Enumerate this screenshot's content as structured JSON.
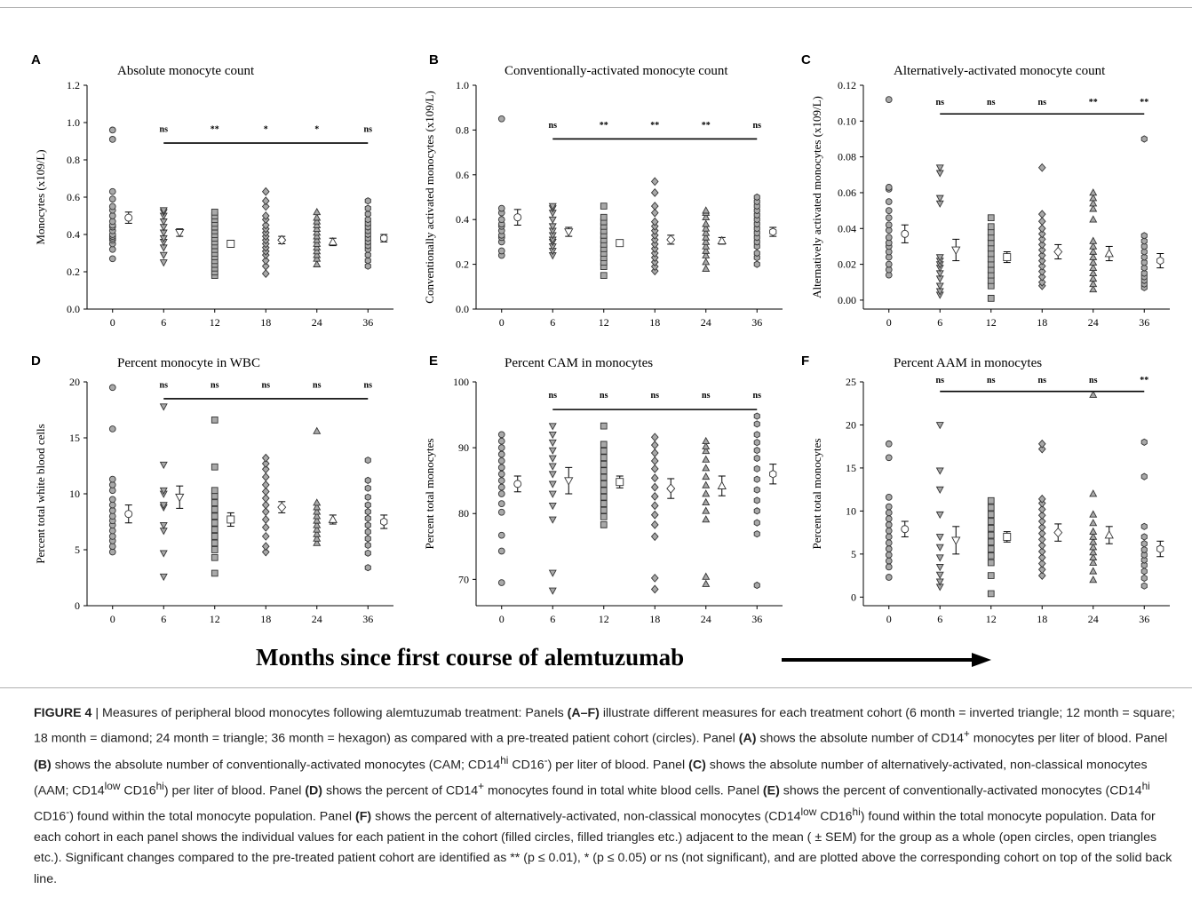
{
  "figure": {
    "x_axis_main_label": "Months since first course of alemtuzumab",
    "x_ticks": [
      "0",
      "6",
      "12",
      "18",
      "24",
      "36"
    ],
    "marker_fill": "#a9a9a9",
    "marker_stroke": "#333333"
  },
  "chart_data": [
    {
      "panel": "A",
      "type": "scatter",
      "title": "Absolute monocyte count",
      "ylabel": "Monocytes (x109/L)",
      "ylim": [
        0,
        1.2
      ],
      "yticks": [
        "0.0",
        "0.2",
        "0.4",
        "0.6",
        "0.8",
        "1.0",
        "1.2"
      ],
      "categories": [
        "0",
        "6",
        "12",
        "18",
        "24",
        "36"
      ],
      "markers": [
        "circle",
        "triangle-down",
        "square",
        "diamond",
        "triangle-up",
        "hexagon"
      ],
      "sig_labels": [
        "ns",
        "**",
        "*",
        "*",
        "ns"
      ],
      "sig_line_y": 0.89,
      "sig_text_y": 0.95,
      "means": [
        0.49,
        0.41,
        0.35,
        0.37,
        0.36,
        0.38
      ],
      "sems": [
        0.03,
        0.02,
        0.015,
        0.02,
        0.02,
        0.02
      ],
      "points": [
        [
          0.27,
          0.32,
          0.35,
          0.37,
          0.38,
          0.39,
          0.4,
          0.42,
          0.44,
          0.45,
          0.47,
          0.5,
          0.53,
          0.55,
          0.59,
          0.63,
          0.91,
          0.96
        ],
        [
          0.25,
          0.29,
          0.33,
          0.36,
          0.38,
          0.41,
          0.44,
          0.47,
          0.5,
          0.52,
          0.53
        ],
        [
          0.18,
          0.2,
          0.22,
          0.24,
          0.26,
          0.28,
          0.3,
          0.32,
          0.34,
          0.36,
          0.38,
          0.4,
          0.42,
          0.44,
          0.46,
          0.48,
          0.5,
          0.52
        ],
        [
          0.19,
          0.23,
          0.26,
          0.29,
          0.31,
          0.33,
          0.35,
          0.37,
          0.39,
          0.41,
          0.43,
          0.45,
          0.48,
          0.5,
          0.55,
          0.58,
          0.63
        ],
        [
          0.24,
          0.27,
          0.29,
          0.31,
          0.33,
          0.35,
          0.37,
          0.39,
          0.41,
          0.43,
          0.45,
          0.47,
          0.49,
          0.52
        ],
        [
          0.23,
          0.26,
          0.29,
          0.32,
          0.34,
          0.36,
          0.38,
          0.4,
          0.42,
          0.44,
          0.46,
          0.48,
          0.51,
          0.54,
          0.58
        ]
      ]
    },
    {
      "panel": "B",
      "type": "scatter",
      "title": "Conventionally-activated monocyte count",
      "ylabel": "Conventionally activated monocytes (x109/L)",
      "ylim": [
        0,
        1.0
      ],
      "yticks": [
        "0.0",
        "0.2",
        "0.4",
        "0.6",
        "0.8",
        "1.0"
      ],
      "categories": [
        "0",
        "6",
        "12",
        "18",
        "24",
        "36"
      ],
      "markers": [
        "circle",
        "triangle-down",
        "square",
        "diamond",
        "triangle-up",
        "hexagon"
      ],
      "sig_labels": [
        "ns",
        "**",
        "**",
        "**",
        "ns"
      ],
      "sig_line_y": 0.76,
      "sig_text_y": 0.81,
      "means": [
        0.41,
        0.345,
        0.295,
        0.31,
        0.305,
        0.345
      ],
      "sems": [
        0.035,
        0.02,
        0.015,
        0.02,
        0.015,
        0.02
      ],
      "points": [
        [
          0.24,
          0.26,
          0.3,
          0.32,
          0.33,
          0.35,
          0.37,
          0.38,
          0.4,
          0.43,
          0.45,
          0.85
        ],
        [
          0.24,
          0.26,
          0.28,
          0.3,
          0.31,
          0.33,
          0.35,
          0.37,
          0.4,
          0.43,
          0.45,
          0.46
        ],
        [
          0.15,
          0.19,
          0.21,
          0.23,
          0.25,
          0.27,
          0.29,
          0.31,
          0.33,
          0.35,
          0.37,
          0.39,
          0.41,
          0.46
        ],
        [
          0.17,
          0.19,
          0.21,
          0.23,
          0.25,
          0.27,
          0.29,
          0.31,
          0.33,
          0.35,
          0.37,
          0.39,
          0.43,
          0.46,
          0.52,
          0.57
        ],
        [
          0.18,
          0.21,
          0.24,
          0.26,
          0.28,
          0.3,
          0.32,
          0.34,
          0.36,
          0.38,
          0.41,
          0.43,
          0.44
        ],
        [
          0.2,
          0.23,
          0.25,
          0.28,
          0.3,
          0.32,
          0.34,
          0.36,
          0.38,
          0.4,
          0.42,
          0.44,
          0.46,
          0.48,
          0.5
        ]
      ]
    },
    {
      "panel": "C",
      "type": "scatter",
      "title": "Alternatively-activated monocyte count",
      "ylabel": "Alternatively activated monocytes (x109/L)",
      "ylim": [
        -0.005,
        0.12
      ],
      "yticks": [
        "0.00",
        "0.02",
        "0.04",
        "0.06",
        "0.08",
        "0.10",
        "0.12"
      ],
      "categories": [
        "0",
        "6",
        "12",
        "18",
        "24",
        "36"
      ],
      "markers": [
        "circle",
        "triangle-down",
        "square",
        "diamond",
        "triangle-up",
        "hexagon"
      ],
      "sig_labels": [
        "ns",
        "ns",
        "ns",
        "**",
        "**"
      ],
      "sig_line_y": 0.104,
      "sig_text_y": 0.109,
      "means": [
        0.037,
        0.028,
        0.024,
        0.027,
        0.026,
        0.022
      ],
      "sems": [
        0.005,
        0.006,
        0.003,
        0.004,
        0.004,
        0.004
      ],
      "points": [
        [
          0.014,
          0.017,
          0.02,
          0.024,
          0.027,
          0.03,
          0.032,
          0.035,
          0.039,
          0.042,
          0.046,
          0.05,
          0.055,
          0.062,
          0.063,
          0.112
        ],
        [
          0.003,
          0.005,
          0.008,
          0.012,
          0.015,
          0.018,
          0.02,
          0.022,
          0.024,
          0.054,
          0.057,
          0.071,
          0.074
        ],
        [
          0.001,
          0.008,
          0.011,
          0.014,
          0.017,
          0.02,
          0.023,
          0.026,
          0.029,
          0.032,
          0.035,
          0.038,
          0.041,
          0.046
        ],
        [
          0.008,
          0.01,
          0.013,
          0.016,
          0.019,
          0.022,
          0.025,
          0.028,
          0.031,
          0.034,
          0.037,
          0.04,
          0.044,
          0.048,
          0.074
        ],
        [
          0.006,
          0.009,
          0.012,
          0.015,
          0.018,
          0.021,
          0.024,
          0.027,
          0.03,
          0.033,
          0.045,
          0.051,
          0.054,
          0.057,
          0.06
        ],
        [
          0.007,
          0.009,
          0.011,
          0.013,
          0.015,
          0.018,
          0.021,
          0.024,
          0.027,
          0.03,
          0.033,
          0.036,
          0.09
        ]
      ]
    },
    {
      "panel": "D",
      "type": "scatter",
      "title": "Percent monocyte in WBC",
      "ylabel": "Percent total white blood cells",
      "ylim": [
        0,
        20
      ],
      "yticks": [
        "0",
        "5",
        "10",
        "15",
        "20"
      ],
      "categories": [
        "0",
        "6",
        "12",
        "18",
        "24",
        "36"
      ],
      "markers": [
        "circle",
        "triangle-down",
        "square",
        "diamond",
        "triangle-up",
        "hexagon"
      ],
      "sig_labels": [
        "ns",
        "ns",
        "ns",
        "ns",
        "ns"
      ],
      "sig_line_y": 18.5,
      "sig_text_y": 19.5,
      "means": [
        8.2,
        9.7,
        7.7,
        8.8,
        7.7,
        7.5
      ],
      "sems": [
        0.8,
        1.0,
        0.6,
        0.5,
        0.4,
        0.6
      ],
      "points": [
        [
          4.8,
          5.3,
          5.8,
          6.2,
          6.7,
          7.2,
          7.6,
          8.0,
          8.5,
          9.0,
          9.5,
          10.3,
          10.8,
          11.3,
          15.8,
          19.5
        ],
        [
          2.6,
          4.7,
          6.7,
          7.2,
          8.8,
          9.0,
          10.0,
          10.3,
          12.6,
          17.8
        ],
        [
          2.9,
          4.3,
          5.0,
          5.6,
          6.2,
          6.8,
          7.4,
          8.0,
          8.6,
          9.2,
          9.8,
          10.3,
          12.4,
          16.6
        ],
        [
          4.8,
          5.3,
          6.2,
          7.0,
          7.7,
          8.4,
          9.0,
          9.6,
          10.2,
          10.8,
          11.5,
          12.2,
          12.7,
          13.2
        ],
        [
          5.6,
          6.0,
          6.4,
          6.8,
          7.2,
          7.6,
          8.0,
          8.4,
          8.8,
          9.2,
          15.6
        ],
        [
          3.4,
          4.7,
          5.4,
          6.0,
          6.6,
          7.2,
          7.8,
          8.4,
          9.0,
          9.7,
          10.5,
          11.2,
          13.0
        ]
      ]
    },
    {
      "panel": "E",
      "type": "scatter",
      "title": "Percent CAM in monocytes",
      "ylabel": "Percent total monocytes",
      "ylim": [
        66,
        100
      ],
      "yticks": [
        "70",
        "80",
        "90",
        "100"
      ],
      "categories": [
        "0",
        "6",
        "12",
        "18",
        "24",
        "36"
      ],
      "markers": [
        "circle",
        "triangle-down",
        "square",
        "diamond",
        "triangle-up",
        "hexagon"
      ],
      "sig_labels": [
        "ns",
        "ns",
        "ns",
        "ns",
        "ns"
      ],
      "sig_line_y": 95.8,
      "sig_text_y": 97.6,
      "means": [
        84.5,
        85.0,
        84.8,
        83.8,
        84.2,
        86.0
      ],
      "sems": [
        1.2,
        2.0,
        0.9,
        1.5,
        1.5,
        1.5
      ],
      "points": [
        [
          69.5,
          74.3,
          76.7,
          80.2,
          81.5,
          83.0,
          84.0,
          85.0,
          86.0,
          87.0,
          88.0,
          89.0,
          90.0,
          91.0,
          92.0
        ],
        [
          68.3,
          71.0,
          79.1,
          81.2,
          83.0,
          84.5,
          86.0,
          87.2,
          88.4,
          89.6,
          90.8,
          92.0,
          93.3
        ],
        [
          78.3,
          79.5,
          80.5,
          81.5,
          82.5,
          83.5,
          84.5,
          85.5,
          86.5,
          87.5,
          88.5,
          89.5,
          90.5,
          93.3
        ],
        [
          68.5,
          70.2,
          76.5,
          78.3,
          79.8,
          81.2,
          82.6,
          84.0,
          85.4,
          86.8,
          88.0,
          89.2,
          90.4,
          91.6
        ],
        [
          69.3,
          70.4,
          79.1,
          80.4,
          81.7,
          83.0,
          84.3,
          85.6,
          86.9,
          88.2,
          89.5,
          90.2,
          91.0
        ],
        [
          69.1,
          76.9,
          78.6,
          80.4,
          82.0,
          83.6,
          85.2,
          86.8,
          88.4,
          89.6,
          90.8,
          92.0,
          93.6,
          94.8
        ]
      ]
    },
    {
      "panel": "F",
      "type": "scatter",
      "title": "Percent AAM in monocytes",
      "ylabel": "Percent total monocytes",
      "ylim": [
        -1,
        25
      ],
      "yticks": [
        "0",
        "5",
        "10",
        "15",
        "20",
        "25"
      ],
      "categories": [
        "0",
        "6",
        "12",
        "18",
        "24",
        "36"
      ],
      "markers": [
        "circle",
        "triangle-down",
        "square",
        "diamond",
        "triangle-up",
        "hexagon"
      ],
      "sig_labels": [
        "ns",
        "ns",
        "ns",
        "ns",
        "**"
      ],
      "sig_line_y": 23.9,
      "sig_text_y": 24.9,
      "means": [
        7.9,
        6.6,
        7.0,
        7.5,
        7.2,
        5.6
      ],
      "sems": [
        0.9,
        1.6,
        0.6,
        1.0,
        1.0,
        0.9
      ],
      "points": [
        [
          2.3,
          3.5,
          4.2,
          4.9,
          5.6,
          6.3,
          7.0,
          7.7,
          8.4,
          9.1,
          9.8,
          10.5,
          11.6,
          16.2,
          17.8
        ],
        [
          1.2,
          1.8,
          2.6,
          3.5,
          4.6,
          5.8,
          7.0,
          9.6,
          12.5,
          14.7,
          20.0
        ],
        [
          0.4,
          2.5,
          4.0,
          4.8,
          5.6,
          6.4,
          7.2,
          8.0,
          8.8,
          9.6,
          10.4,
          11.2
        ],
        [
          2.5,
          3.2,
          3.9,
          4.6,
          5.3,
          6.0,
          6.7,
          7.4,
          8.1,
          8.8,
          9.5,
          10.2,
          10.9,
          11.4,
          17.2,
          17.8
        ],
        [
          2.0,
          3.0,
          4.0,
          4.6,
          5.2,
          5.8,
          6.4,
          7.0,
          7.6,
          8.6,
          9.6,
          12.0,
          23.5
        ],
        [
          1.3,
          2.2,
          3.0,
          3.7,
          4.3,
          4.9,
          5.5,
          6.2,
          7.0,
          8.2,
          14.0,
          18.0
        ]
      ]
    }
  ],
  "caption": {
    "lead": "FIGURE 4",
    "sep": " | ",
    "s1": "Measures of peripheral blood monocytes following alemtuzumab treatment: Panels ",
    "b1": "(A–F)",
    "s2": " illustrate different measures for each treatment cohort (6 month = inverted triangle; 12 month = square; 18 month = diamond; 24 month = triangle; 36 month = hexagon) as compared with a pre-treated patient cohort (circles). Panel ",
    "b2": "(A)",
    "s3": " shows the absolute number of CD14",
    "sup1": "+",
    "s4": " monocytes per liter of blood. Panel ",
    "b3": "(B)",
    "s5": " shows the absolute number of conventionally-activated monocytes (CAM; CD14",
    "sup2": "hi",
    "s6": " CD16",
    "sup3": "-",
    "s7": ") per liter of blood. Panel ",
    "b4": "(C)",
    "s8": " shows the absolute number of alternatively-activated, non-classical monocytes (AAM; CD14",
    "sup4": "low",
    "s9": " CD16",
    "sup5": "hi",
    "s10": ") per liter of blood. Panel ",
    "b5": "(D)",
    "s11": " shows the percent of CD14",
    "sup6": "+",
    "s12": " monocytes found in total white blood cells. Panel ",
    "b6": "(E)",
    "s13": " shows the percent of conventionally-activated monocytes (CD14",
    "sup7": "hi",
    "s14": " CD16",
    "sup8": "-",
    "s15": ") found within the total monocyte population. Panel ",
    "b7": "(F)",
    "s16": " shows the percent of alternatively-activated, non-classical monocytes (CD14",
    "sup9": "low",
    "s17": " CD16",
    "sup10": "hi",
    "s18": ") found within the total monocyte population. Data for each cohort in each panel shows the individual values for each patient in the cohort (filled circles, filled triangles etc.) adjacent to the mean ( ± SEM) for the group as a whole (open circles, open triangles etc.). Significant changes compared to the pre-treated patient cohort are identified as ** (p ≤ 0.01), * (p ≤ 0.05) or ns (not significant), and are plotted above the corresponding cohort on top of the solid back line."
  }
}
